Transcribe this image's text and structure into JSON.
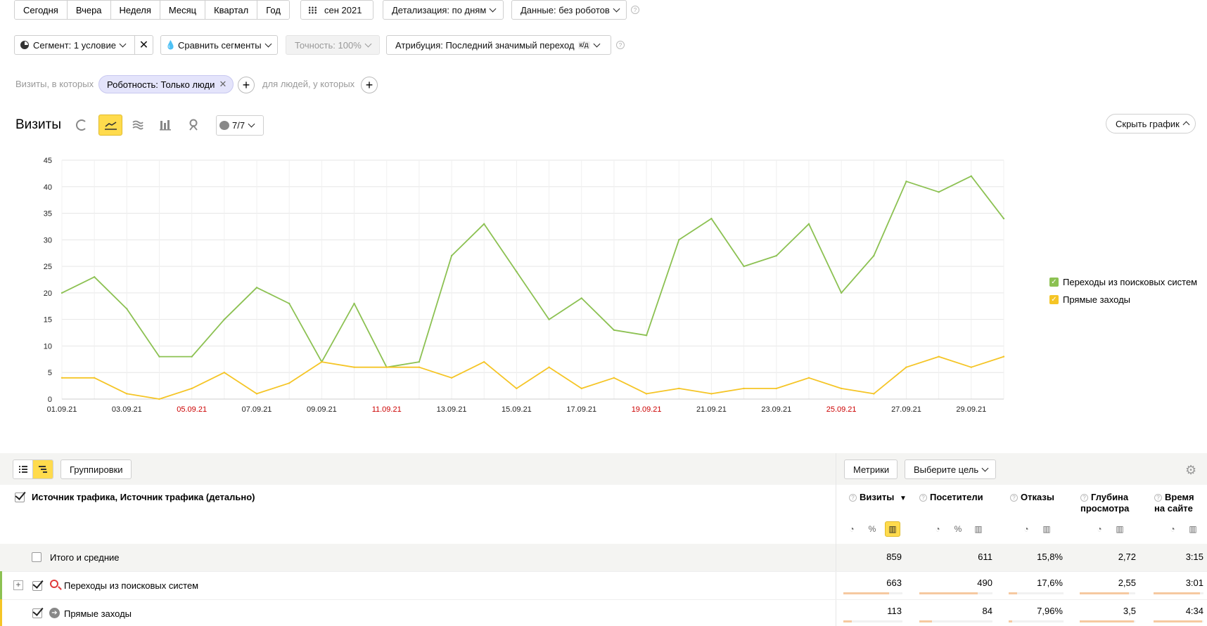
{
  "period_buttons": [
    "Сегодня",
    "Вчера",
    "Неделя",
    "Месяц",
    "Квартал",
    "Год"
  ],
  "date_picker": "сен 2021",
  "detail_dropdown": "Детализация: по дням",
  "data_dropdown": "Данные: без роботов",
  "segment": {
    "label": "Сегмент: 1 условие",
    "compare": "Сравнить сегменты",
    "accuracy": "Точность: 100%",
    "attribution": "Атрибуция: Последний значимый переход",
    "attribution_badge": "к/д"
  },
  "filter": {
    "prefix": "Визиты, в которых",
    "chip": "Роботность: Только люди",
    "people_prefix": "для людей, у которых"
  },
  "chart_header": {
    "title": "Визиты",
    "annotations": "7/7",
    "hide_button": "Скрыть график"
  },
  "chart_data": {
    "type": "line",
    "x": [
      "01.09.21",
      "02.09.21",
      "03.09.21",
      "04.09.21",
      "05.09.21",
      "06.09.21",
      "07.09.21",
      "08.09.21",
      "09.09.21",
      "10.09.21",
      "11.09.21",
      "12.09.21",
      "13.09.21",
      "14.09.21",
      "15.09.21",
      "16.09.21",
      "17.09.21",
      "18.09.21",
      "19.09.21",
      "20.09.21",
      "21.09.21",
      "22.09.21",
      "23.09.21",
      "24.09.21",
      "25.09.21",
      "26.09.21",
      "27.09.21",
      "28.09.21",
      "29.09.21",
      "30.09.21"
    ],
    "x_tick_labels": [
      "01.09.21",
      "03.09.21",
      "05.09.21",
      "07.09.21",
      "09.09.21",
      "11.09.21",
      "13.09.21",
      "15.09.21",
      "17.09.21",
      "19.09.21",
      "21.09.21",
      "23.09.21",
      "25.09.21",
      "27.09.21",
      "29.09.21"
    ],
    "weekend_ticks": [
      "05.09.21",
      "11.09.21",
      "19.09.21",
      "25.09.21"
    ],
    "y_ticks": [
      "0",
      "5",
      "10",
      "15",
      "20",
      "25",
      "30",
      "35",
      "40",
      "45"
    ],
    "ylim": [
      0,
      45
    ],
    "series": [
      {
        "name": "Переходы из поисковых систем",
        "color": "#8cc152",
        "values": [
          20,
          23,
          17,
          8,
          8,
          15,
          21,
          18,
          7,
          18,
          6,
          7,
          27,
          33,
          24,
          15,
          19,
          13,
          12,
          30,
          34,
          25,
          27,
          33,
          20,
          27,
          41,
          39,
          42,
          34
        ]
      },
      {
        "name": "Прямые заходы",
        "color": "#f5c526",
        "values": [
          4,
          4,
          1,
          0,
          2,
          5,
          1,
          3,
          7,
          6,
          6,
          6,
          4,
          7,
          2,
          6,
          2,
          4,
          1,
          2,
          1,
          2,
          2,
          4,
          2,
          1,
          6,
          8,
          6,
          8
        ]
      }
    ],
    "legend_position": "right"
  },
  "table_toolbar": {
    "groupings": "Группировки",
    "metrics": "Метрики",
    "goal": "Выберите цель"
  },
  "table": {
    "dimension_header": "Источник трафика, Источник трафика (детально)",
    "columns": [
      {
        "line1": "Визиты",
        "line2": ""
      },
      {
        "line1": "Посетители",
        "line2": ""
      },
      {
        "line1": "Отказы",
        "line2": ""
      },
      {
        "line1": "Глубина",
        "line2": "просмотра"
      },
      {
        "line1": "Время",
        "line2": "на сайте"
      }
    ],
    "sort_arrow": "▼",
    "totals": {
      "label": "Итого и средние",
      "values": [
        "859",
        "611",
        "15,8%",
        "2,72",
        "3:15"
      ]
    },
    "rows": [
      {
        "label": "Переходы из поисковых систем",
        "values": [
          "663",
          "490",
          "17,6%",
          "2,55",
          "3:01"
        ],
        "bars": [
          0.77,
          0.8,
          0.15,
          0.88,
          0.93
        ],
        "color": "#8cc152"
      },
      {
        "label": "Прямые заходы",
        "values": [
          "113",
          "84",
          "7,96%",
          "3,5",
          "4:34"
        ],
        "bars": [
          0.14,
          0.17,
          0.07,
          0.97,
          0.97
        ],
        "color": "#f5c526"
      }
    ]
  }
}
